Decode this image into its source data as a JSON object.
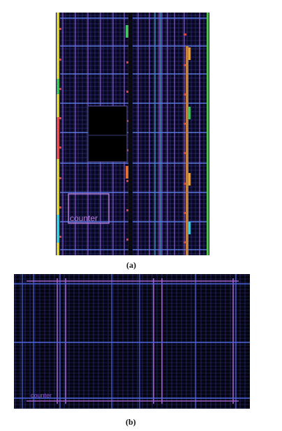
{
  "figure": {
    "panel_a": {
      "caption": "(a)",
      "block_label": "counter",
      "colors": {
        "background": "#070722",
        "grid_fine": "#3b3a8c",
        "grid_vertical": "#8e5ad6",
        "grid_horizontal": "#5b77e0",
        "power_rails": "#c060c0",
        "macro_block": "#000000",
        "label": "#b47cd8"
      }
    },
    "panel_b": {
      "caption": "(b)",
      "block_label": "counter",
      "colors": {
        "background": "#05050f",
        "grid_fine": "#2c2c78",
        "rail_violet": "#a163cf",
        "rail_blue": "#4d63d8",
        "label": "#8f5ad0"
      }
    }
  }
}
